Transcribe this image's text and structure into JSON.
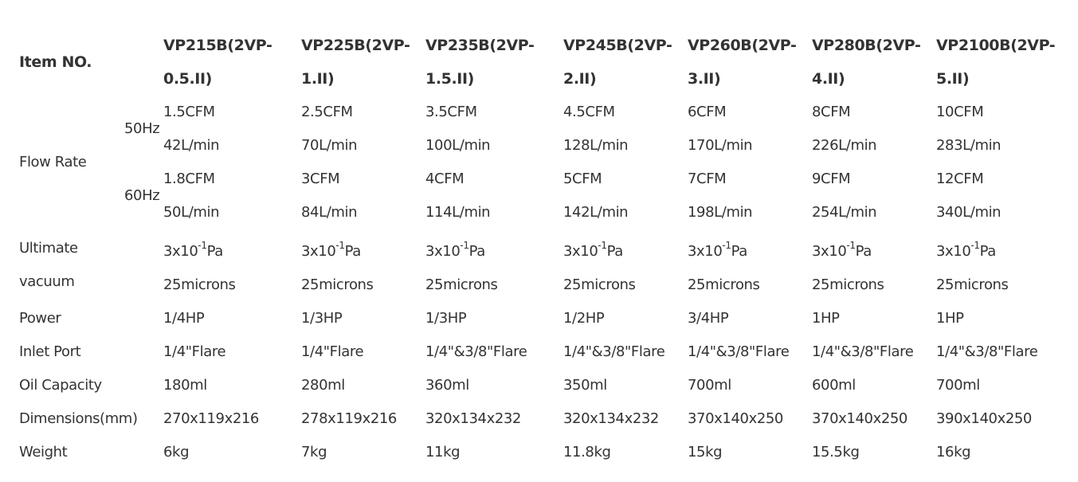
{
  "header_label": "Item NO.",
  "models": [
    [
      "VP215B(2VP-",
      "0.5.II)"
    ],
    [
      "VP225B(2VP-",
      "1.II)"
    ],
    [
      "VP235B(2VP-",
      "1.5.II)"
    ],
    [
      "VP245B(2VP-",
      "2.II)"
    ],
    [
      "VP260B(2VP-",
      "3.II)"
    ],
    [
      "VP280B(2VP-",
      "4.II)"
    ],
    [
      "VP2100B(2VP-",
      "5.II)"
    ]
  ],
  "flow_rate": {
    "label": "Flow Rate",
    "hz50": {
      "label": "50Hz",
      "cfm": [
        "1.5CFM",
        "2.5CFM",
        "3.5CFM",
        "4.5CFM",
        "6CFM",
        "8CFM",
        "10CFM"
      ],
      "lmin": [
        "42L/min",
        "70L/min",
        "100L/min",
        "128L/min",
        "170L/min",
        "226L/min",
        "283L/min"
      ]
    },
    "hz60": {
      "label": "60Hz",
      "cfm": [
        "1.8CFM",
        "3CFM",
        "4CFM",
        "5CFM",
        "7CFM",
        "9CFM",
        "12CFM"
      ],
      "lmin": [
        "50L/min",
        "84L/min",
        "114L/min",
        "142L/min",
        "198L/min",
        "254L/min",
        "340L/min"
      ]
    }
  },
  "ultimate_vacuum": {
    "label_line1": "Ultimate",
    "label_line2": "vacuum",
    "pa": {
      "base": "3x10",
      "exp": "-1",
      "unit": "Pa"
    },
    "microns": [
      "25microns",
      "25microns",
      "25microns",
      "25microns",
      "25microns",
      "25microns",
      "25microns"
    ]
  },
  "rows": [
    {
      "label": "Power",
      "values": [
        "1/4HP",
        "1/3HP",
        "1/3HP",
        "1/2HP",
        "3/4HP",
        "1HP",
        "1HP"
      ]
    },
    {
      "label": "Inlet Port",
      "values": [
        "1/4\"Flare",
        "1/4\"Flare",
        "1/4\"&3/8\"Flare",
        "1/4\"&3/8\"Flare",
        "1/4\"&3/8\"Flare",
        "1/4\"&3/8\"Flare",
        "1/4\"&3/8\"Flare"
      ]
    },
    {
      "label": "Oil Capacity",
      "values": [
        "180ml",
        "280ml",
        "360ml",
        "350ml",
        "700ml",
        "600ml",
        "700ml"
      ]
    },
    {
      "label": "Dimensions(mm)",
      "values": [
        "270x119x216",
        "278x119x216",
        "320x134x232",
        "320x134x232",
        "370x140x250",
        "370x140x250",
        "390x140x250"
      ]
    },
    {
      "label": "Weight",
      "values": [
        "6kg",
        "7kg",
        "11kg",
        "11.8kg",
        "15kg",
        "15.5kg",
        "16kg"
      ]
    }
  ]
}
